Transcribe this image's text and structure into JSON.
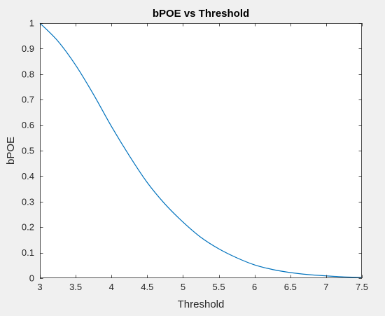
{
  "chart_data": {
    "type": "line",
    "title": "bPOE vs Threshold",
    "xlabel": "Threshold",
    "ylabel": "bPOE",
    "xlim": [
      3,
      7.5
    ],
    "ylim": [
      0,
      1
    ],
    "xticks": [
      3,
      3.5,
      4,
      4.5,
      5,
      5.5,
      6,
      6.5,
      7,
      7.5
    ],
    "xtick_labels": [
      "3",
      "3.5",
      "4",
      "4.5",
      "5",
      "5.5",
      "6",
      "6.5",
      "7",
      "7.5"
    ],
    "yticks": [
      0,
      0.1,
      0.2,
      0.3,
      0.4,
      0.5,
      0.6,
      0.7,
      0.8,
      0.9,
      1
    ],
    "ytick_labels": [
      "0",
      "0.1",
      "0.2",
      "0.3",
      "0.4",
      "0.5",
      "0.6",
      "0.7",
      "0.8",
      "0.9",
      "1"
    ],
    "grid": false,
    "line_color": "#0072bd",
    "series": [
      {
        "x": [
          3,
          3.25,
          3.5,
          3.75,
          4,
          4.25,
          4.5,
          4.75,
          5,
          5.25,
          5.5,
          5.75,
          6,
          6.25,
          6.5,
          6.75,
          7,
          7.25,
          7.5
        ],
        "y": [
          1.0,
          0.93,
          0.835,
          0.72,
          0.595,
          0.48,
          0.375,
          0.29,
          0.22,
          0.16,
          0.115,
          0.08,
          0.052,
          0.034,
          0.022,
          0.014,
          0.009,
          0.005,
          0.003
        ]
      }
    ]
  }
}
